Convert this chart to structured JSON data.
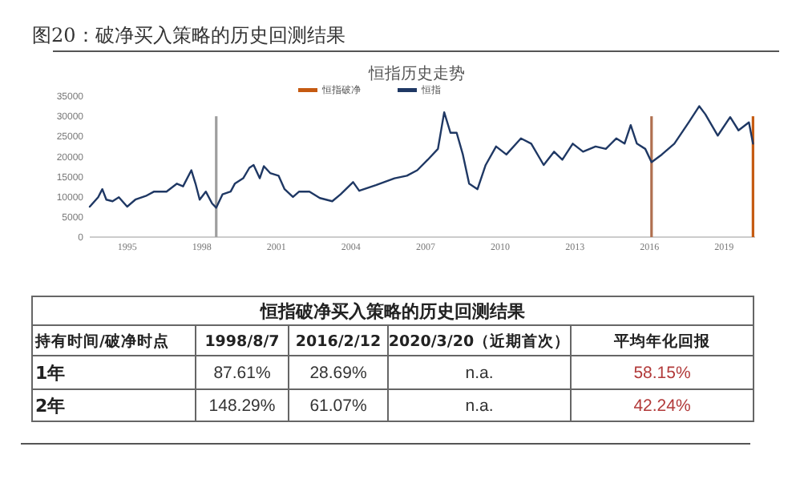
{
  "chart_data": [
    {
      "type": "line",
      "title": "恒指历史走势",
      "annotations": [
        "图20：破净买入策略的历史回测结果"
      ],
      "xlim": [
        "1993-07",
        "2020-04"
      ],
      "ylim": [
        0,
        35000
      ],
      "yticks": [
        0,
        5000,
        10000,
        15000,
        20000,
        25000,
        30000,
        35000
      ],
      "xticks": [
        {
          "value": "1995",
          "label": "1995"
        },
        {
          "value": "1998",
          "label": "1998"
        },
        {
          "value": "2001",
          "label": "2001"
        },
        {
          "value": "2004",
          "label": "2004"
        },
        {
          "value": "2007",
          "label": "2007"
        },
        {
          "value": "2010",
          "label": "2010"
        },
        {
          "value": "2013",
          "label": "2013"
        },
        {
          "value": "2016",
          "label": "2016"
        },
        {
          "value": "2019",
          "label": "2019"
        }
      ],
      "legend": "top",
      "grid": false,
      "series": [
        {
          "name": "恒指破净",
          "type": "bar",
          "color": "#c55a11",
          "colors": [
            "#9e9e9e",
            "#b07050",
            "#c55a11"
          ],
          "x": [
            "1998-08",
            "2016-02",
            "2020-03"
          ],
          "values": [
            30000,
            30000,
            30000
          ]
        },
        {
          "name": "恒指",
          "type": "line",
          "color": "#1f3864",
          "x": [
            "1993-07",
            "1993-11",
            "1994-01",
            "1994-03",
            "1994-06",
            "1994-09",
            "1995-01",
            "1995-05",
            "1995-10",
            "1996-02",
            "1996-08",
            "1997-01",
            "1997-04",
            "1997-08",
            "1997-10",
            "1997-12",
            "1998-03",
            "1998-06",
            "1998-08",
            "1998-11",
            "1999-03",
            "1999-05",
            "1999-09",
            "1999-12",
            "2000-02",
            "2000-05",
            "2000-07",
            "2000-10",
            "2001-02",
            "2001-05",
            "2001-09",
            "2001-12",
            "2002-05",
            "2002-10",
            "2003-04",
            "2003-08",
            "2004-02",
            "2004-05",
            "2005-01",
            "2005-10",
            "2006-04",
            "2006-09",
            "2007-02",
            "2007-07",
            "2007-10",
            "2008-01",
            "2008-04",
            "2008-07",
            "2008-10",
            "2009-02",
            "2009-06",
            "2009-11",
            "2010-04",
            "2010-11",
            "2011-04",
            "2011-10",
            "2012-03",
            "2012-07",
            "2012-12",
            "2013-05",
            "2013-11",
            "2014-04",
            "2014-09",
            "2015-01",
            "2015-04",
            "2015-07",
            "2015-11",
            "2016-02",
            "2016-07",
            "2017-01",
            "2017-08",
            "2018-01",
            "2018-04",
            "2018-10",
            "2019-04",
            "2019-08",
            "2020-01",
            "2020-03"
          ],
          "values": [
            7560,
            9900,
            11900,
            9300,
            8900,
            9900,
            7560,
            9300,
            10200,
            11300,
            11300,
            13260,
            12600,
            16600,
            13260,
            9300,
            11300,
            8350,
            7300,
            10600,
            11300,
            13260,
            14600,
            17200,
            17900,
            14600,
            17600,
            15900,
            15250,
            11900,
            9950,
            11300,
            11300,
            9700,
            8900,
            10600,
            13650,
            11500,
            12900,
            14600,
            15250,
            16600,
            19200,
            21900,
            31000,
            25900,
            25900,
            20500,
            13260,
            11900,
            17900,
            22500,
            20500,
            24500,
            23200,
            17900,
            21200,
            19200,
            23200,
            21200,
            22500,
            21900,
            24500,
            23200,
            27800,
            23200,
            21900,
            18600,
            20500,
            23200,
            28500,
            32500,
            30500,
            25200,
            29800,
            26500,
            28500,
            23200
          ]
        }
      ]
    },
    {
      "type": "other",
      "title": "恒指破净买入策略的历史回测结果",
      "categories": [
        "持有时间/破净时点",
        "1998/8/7",
        "2016/2/12",
        "2020/3/20（近期首次）",
        "平均年化回报"
      ],
      "y_categories": [
        "1年",
        "2年"
      ],
      "cell_labels": [
        [
          "87.61%",
          "28.69%",
          "n.a.",
          "58.15%"
        ],
        [
          "148.29%",
          "61.07%",
          "n.a.",
          "42.24%"
        ]
      ]
    }
  ]
}
